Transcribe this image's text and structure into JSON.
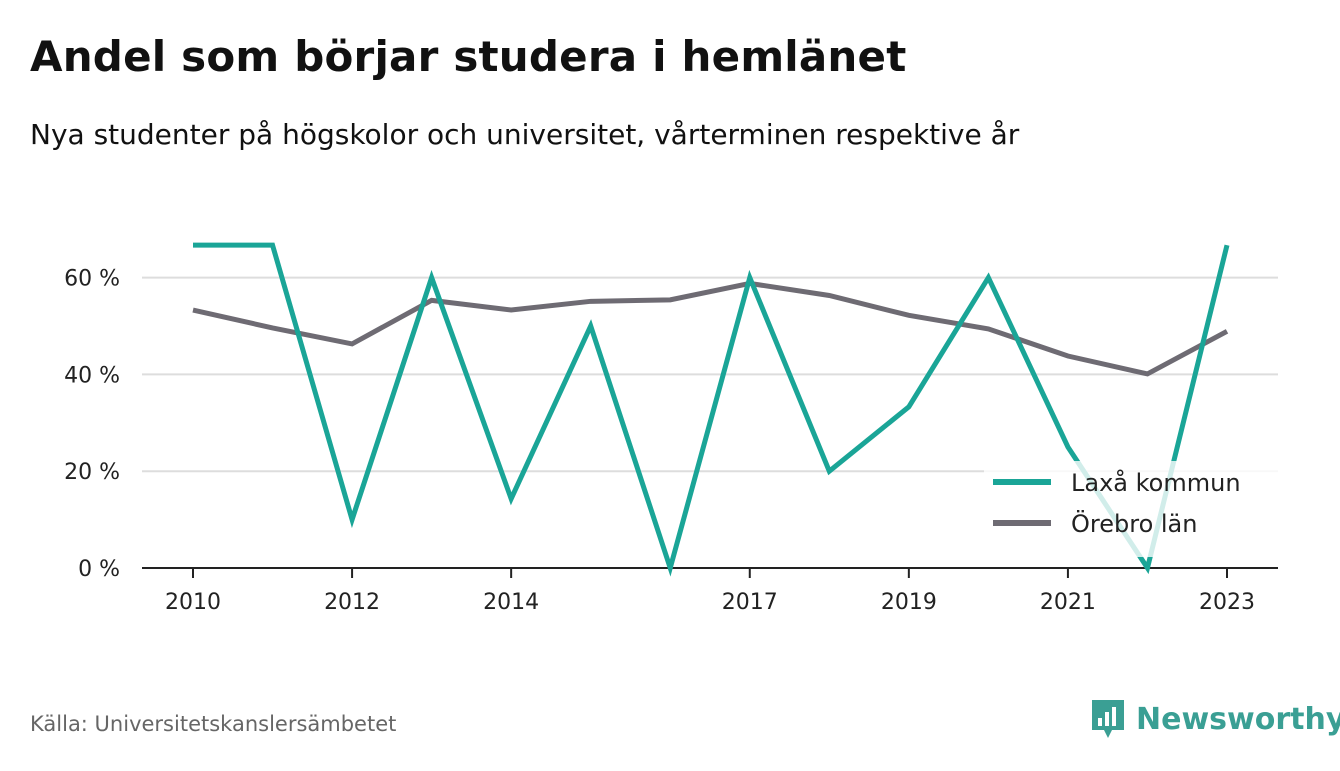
{
  "header": {
    "title": "Andel som börjar studera i hemlänet",
    "subtitle": "Nya studenter på högskolor och universitet, vårterminen respektive år"
  },
  "footer": {
    "source": "Källa: Universitetskanslersämbetet",
    "brand": "Newsworthy"
  },
  "colors": {
    "series1": "#1aa597",
    "series2": "#6e6b73",
    "grid": "#dddddd",
    "axis": "#222222",
    "brand": "#3a9f94"
  },
  "chart_data": {
    "type": "line",
    "x": [
      2010,
      2011,
      2012,
      2013,
      2014,
      2015,
      2016,
      2017,
      2018,
      2019,
      2020,
      2021,
      2022,
      2023
    ],
    "x_tick_labels": [
      "2010",
      "2012",
      "2014",
      "2017",
      "2019",
      "2021",
      "2023"
    ],
    "y_ticks": [
      0,
      20,
      40,
      60
    ],
    "y_tick_labels": [
      "0 %",
      "20 %",
      "40 %",
      "60 %"
    ],
    "ylim": [
      0,
      72
    ],
    "grid": true,
    "legend_position": "bottom-right",
    "series": [
      {
        "name": "Laxå kommun",
        "values": [
          66.7,
          66.7,
          10,
          60,
          14.3,
          50,
          0,
          60,
          20,
          33.3,
          60,
          25,
          0,
          66.7
        ]
      },
      {
        "name": "Örebro län",
        "values": [
          53.3,
          49.6,
          46.3,
          55.3,
          53.3,
          55.1,
          55.4,
          58.8,
          56.3,
          52.2,
          49.4,
          43.8,
          40.1,
          48.9
        ]
      }
    ]
  }
}
